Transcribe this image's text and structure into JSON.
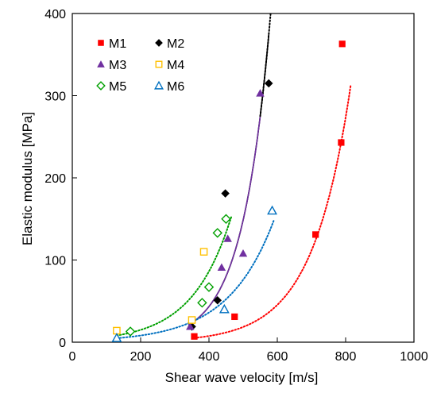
{
  "chart_data": {
    "type": "scatter",
    "xlabel": "Shear wave velocity [m/s]",
    "ylabel": "Elastic modulus [MPa]",
    "xlim": [
      0,
      1000
    ],
    "ylim": [
      0,
      400
    ],
    "x_ticks": [
      0,
      200,
      400,
      600,
      800,
      1000
    ],
    "y_ticks": [
      0,
      100,
      200,
      300,
      400
    ],
    "x_tick_labels": [
      "0",
      "200",
      "400",
      "600",
      "800",
      "1000"
    ],
    "y_tick_labels": [
      "0",
      "100",
      "200",
      "300",
      "400"
    ],
    "grid": false,
    "legend_position": "top-left",
    "series": [
      {
        "name": "M1",
        "marker": "square",
        "filled": true,
        "color": "#ff0000",
        "points": [
          [
            357,
            7
          ],
          [
            475,
            31
          ],
          [
            712,
            131
          ],
          [
            787,
            243
          ],
          [
            790,
            363
          ]
        ],
        "trend": {
          "x": [
            357,
            815
          ],
          "a": 0.2074,
          "b": 0.00898
        }
      },
      {
        "name": "M2",
        "marker": "diamond",
        "filled": true,
        "color": "#000000",
        "points": [
          [
            350,
            19
          ],
          [
            425,
            51
          ],
          [
            448,
            181
          ],
          [
            575,
            315
          ]
        ],
        "trend": {
          "x": [
            340,
            575
          ],
          "a": 0.3138,
          "b": 0.01232
        }
      },
      {
        "name": "M3",
        "marker": "triangle",
        "filled": true,
        "color": "#7030a0",
        "points": [
          [
            345,
            19
          ],
          [
            437,
            91
          ],
          [
            455,
            126
          ],
          [
            500,
            108
          ],
          [
            550,
            303
          ]
        ],
        "trend": {
          "x": [
            340,
            550
          ],
          "a": 0.3138,
          "b": 0.01232
        }
      },
      {
        "name": "M4",
        "marker": "square",
        "filled": false,
        "color": "#ffc000",
        "points": [
          [
            130,
            14
          ],
          [
            385,
            110
          ],
          [
            350,
            27
          ]
        ],
        "trend": null
      },
      {
        "name": "M5",
        "marker": "diamond",
        "filled": false,
        "color": "#00a000",
        "points": [
          [
            170,
            13
          ],
          [
            380,
            48
          ],
          [
            400,
            67
          ],
          [
            425,
            133
          ],
          [
            450,
            150
          ]
        ],
        "trend": {
          "x": [
            130,
            465
          ],
          "a": 2.6,
          "b": 0.00875
        }
      },
      {
        "name": "M6",
        "marker": "triangle",
        "filled": false,
        "color": "#0070c0",
        "points": [
          [
            130,
            5
          ],
          [
            445,
            40
          ],
          [
            585,
            160
          ]
        ],
        "trend": {
          "x": [
            130,
            590
          ],
          "a": 1.83,
          "b": 0.00745
        }
      }
    ],
    "extensions": [
      {
        "color": "#000000",
        "x": [
          550,
          585
        ],
        "a": 0.3138,
        "b": 0.01232
      }
    ]
  }
}
